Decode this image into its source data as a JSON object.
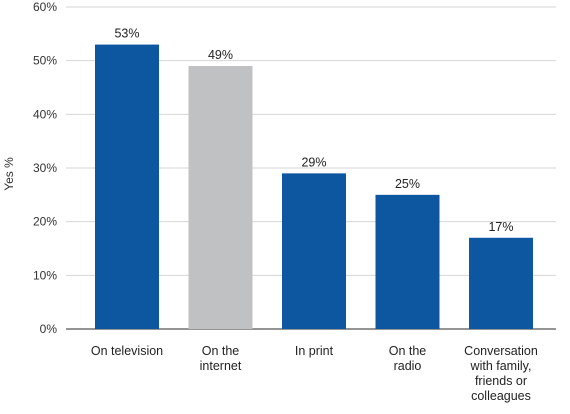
{
  "chart_data": {
    "type": "bar",
    "title": "",
    "xlabel": "",
    "ylabel": "Yes %",
    "ylim": [
      0,
      60
    ],
    "yticks": [
      0,
      10,
      20,
      30,
      40,
      50,
      60
    ],
    "ytick_labels": [
      "0%",
      "10%",
      "20%",
      "30%",
      "40%",
      "50%",
      "60%"
    ],
    "grid": "horizontal",
    "legend": "none",
    "categories": [
      [
        "On television"
      ],
      [
        "On the",
        "internet"
      ],
      [
        "In print"
      ],
      [
        "On the",
        "radio"
      ],
      [
        "Conversation",
        "with family,",
        "friends or",
        "colleagues"
      ]
    ],
    "values": [
      53,
      49,
      29,
      25,
      17
    ],
    "value_labels": [
      "53%",
      "49%",
      "29%",
      "25%",
      "17%"
    ],
    "colors": [
      "#0d57a0",
      "#c0c1c3",
      "#0d57a0",
      "#0d57a0",
      "#0d57a0"
    ]
  }
}
